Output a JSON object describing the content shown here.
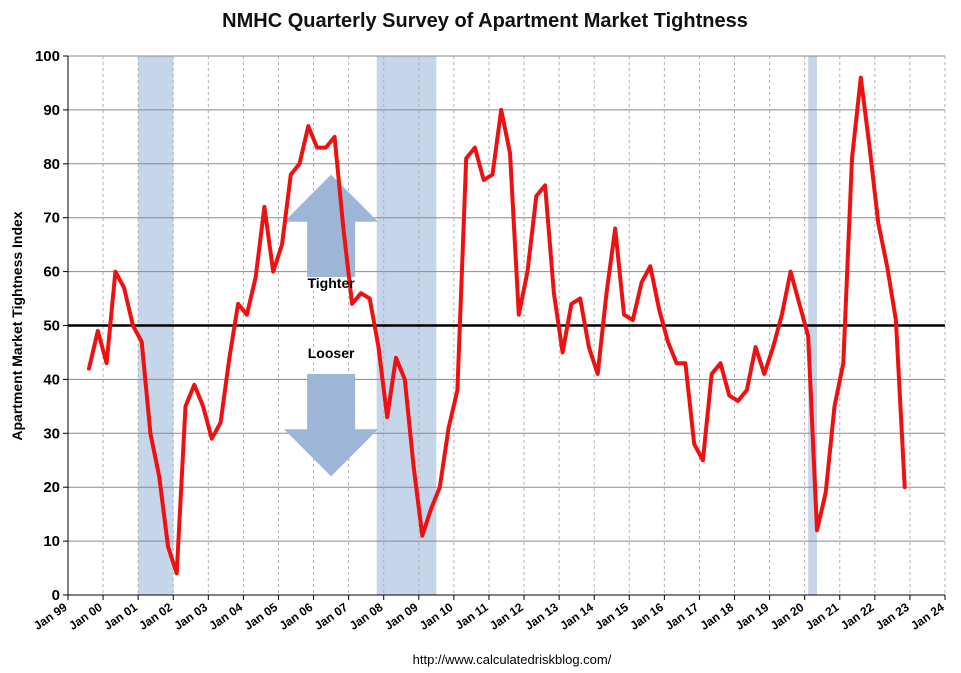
{
  "chart_data": {
    "type": "line",
    "title": "NMHC Quarterly Survey of Apartment Market Tightness",
    "ylabel": "Apartment Market Tightness Index",
    "xlabel": "",
    "ylim": [
      0,
      100
    ],
    "yticks": [
      0,
      10,
      20,
      30,
      40,
      50,
      60,
      70,
      80,
      90,
      100
    ],
    "xlim": [
      1999,
      2024
    ],
    "xticks": [
      {
        "label": "Jan 99",
        "value": 1999
      },
      {
        "label": "Jan 00",
        "value": 2000
      },
      {
        "label": "Jan 01",
        "value": 2001
      },
      {
        "label": "Jan 02",
        "value": 2002
      },
      {
        "label": "Jan 03",
        "value": 2003
      },
      {
        "label": "Jan 04",
        "value": 2004
      },
      {
        "label": "Jan 05",
        "value": 2005
      },
      {
        "label": "Jan 06",
        "value": 2006
      },
      {
        "label": "Jan 07",
        "value": 2007
      },
      {
        "label": "Jan 08",
        "value": 2008
      },
      {
        "label": "Jan 09",
        "value": 2009
      },
      {
        "label": "Jan 10",
        "value": 2010
      },
      {
        "label": "Jan 11",
        "value": 2011
      },
      {
        "label": "Jan 12",
        "value": 2012
      },
      {
        "label": "Jan 13",
        "value": 2013
      },
      {
        "label": "Jan 14",
        "value": 2014
      },
      {
        "label": "Jan 15",
        "value": 2015
      },
      {
        "label": "Jan 16",
        "value": 2016
      },
      {
        "label": "Jan 17",
        "value": 2017
      },
      {
        "label": "Jan 18",
        "value": 2018
      },
      {
        "label": "Jan 19",
        "value": 2019
      },
      {
        "label": "Jan 20",
        "value": 2020
      },
      {
        "label": "Jan 21",
        "value": 2021
      },
      {
        "label": "Jan 22",
        "value": 2022
      },
      {
        "label": "Jan 23",
        "value": 2023
      },
      {
        "label": "Jan 24",
        "value": 2024
      }
    ],
    "grid": "vertical-dashed-and-horizontal",
    "reference_line": 50,
    "recessions": [
      {
        "start": 2001.0,
        "end": 2002.0
      },
      {
        "start": 2007.8,
        "end": 2009.5
      },
      {
        "start": 2020.1,
        "end": 2020.35
      }
    ],
    "series": [
      {
        "color": "#ee1111",
        "x": [
          1999.6,
          1999.85,
          2000.1,
          2000.35,
          2000.6,
          2000.85,
          2001.1,
          2001.35,
          2001.6,
          2001.85,
          2002.1,
          2002.35,
          2002.6,
          2002.85,
          2003.1,
          2003.35,
          2003.6,
          2003.85,
          2004.1,
          2004.35,
          2004.6,
          2004.85,
          2005.1,
          2005.35,
          2005.6,
          2005.85,
          2006.1,
          2006.35,
          2006.6,
          2006.85,
          2007.1,
          2007.35,
          2007.6,
          2007.85,
          2008.1,
          2008.35,
          2008.6,
          2008.85,
          2009.1,
          2009.35,
          2009.6,
          2009.85,
          2010.1,
          2010.35,
          2010.6,
          2010.85,
          2011.1,
          2011.35,
          2011.6,
          2011.85,
          2012.1,
          2012.35,
          2012.6,
          2012.85,
          2013.1,
          2013.35,
          2013.6,
          2013.85,
          2014.1,
          2014.35,
          2014.6,
          2014.85,
          2015.1,
          2015.35,
          2015.6,
          2015.85,
          2016.1,
          2016.35,
          2016.6,
          2016.85,
          2017.1,
          2017.35,
          2017.6,
          2017.85,
          2018.1,
          2018.35,
          2018.6,
          2018.85,
          2019.1,
          2019.35,
          2019.6,
          2019.85,
          2020.1,
          2020.35,
          2020.6,
          2020.85,
          2021.1,
          2021.35,
          2021.6,
          2021.85,
          2022.1,
          2022.35,
          2022.6,
          2022.85
        ],
        "values": [
          42,
          49,
          43,
          60,
          57,
          50,
          47,
          30,
          22,
          9,
          4,
          35,
          39,
          35,
          29,
          32,
          44,
          54,
          52,
          59,
          72,
          60,
          65,
          78,
          80,
          87,
          83,
          83,
          85,
          68,
          54,
          56,
          55,
          46,
          33,
          44,
          40,
          24,
          11,
          16,
          20,
          31,
          38,
          81,
          83,
          77,
          78,
          90,
          82,
          52,
          60,
          74,
          76,
          56,
          45,
          54,
          55,
          46,
          41,
          56,
          68,
          52,
          51,
          58,
          61,
          53,
          47,
          43,
          43,
          28,
          25,
          41,
          43,
          37,
          36,
          38,
          46,
          41,
          46,
          52,
          60,
          54,
          48,
          12,
          19,
          35,
          43,
          81,
          96,
          83,
          69,
          61,
          51,
          20
        ]
      }
    ],
    "annotations": [
      {
        "text": "Tighter",
        "x": 2006.5,
        "y": 57
      },
      {
        "text": "Looser",
        "x": 2006.5,
        "y": 44
      }
    ],
    "arrows": [
      {
        "direction": "up",
        "x": 2006.5,
        "tip_y": 78,
        "base_y": 59
      },
      {
        "direction": "down",
        "x": 2006.5,
        "tip_y": 22,
        "base_y": 41
      }
    ],
    "source": "http://www.calculatedriskblog.com/",
    "colors": {
      "line": "#ee1111",
      "recession": "#c5d5ea",
      "arrow": "#9db6d8",
      "grid_h": "#8a8a8a",
      "grid_v": "#b0b0b0",
      "reference": "#000000"
    }
  }
}
